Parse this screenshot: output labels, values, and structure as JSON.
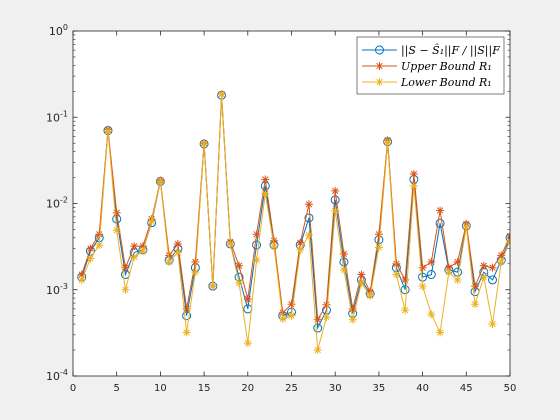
{
  "chart_data": {
    "type": "line",
    "yscale": "log",
    "xlim": [
      0,
      50
    ],
    "ylim": [
      0.0001,
      1
    ],
    "grid": false,
    "legend_placement": "top-right",
    "x_ticks": [
      "0",
      "5",
      "10",
      "15",
      "20",
      "25",
      "30",
      "35",
      "40",
      "45",
      "50"
    ],
    "y_ticks": [
      {
        "base": "10",
        "exp": "0"
      },
      {
        "base": "10",
        "exp": "-1"
      },
      {
        "base": "10",
        "exp": "-2"
      },
      {
        "base": "10",
        "exp": "-3"
      },
      {
        "base": "10",
        "exp": "-4"
      }
    ],
    "x": [
      1,
      2,
      3,
      4,
      5,
      6,
      7,
      8,
      9,
      10,
      11,
      12,
      13,
      14,
      15,
      16,
      17,
      18,
      19,
      20,
      21,
      22,
      23,
      24,
      25,
      26,
      27,
      28,
      29,
      30,
      31,
      32,
      33,
      34,
      35,
      36,
      37,
      38,
      39,
      40,
      41,
      42,
      43,
      44,
      45,
      46,
      47,
      48,
      49,
      50
    ],
    "series": [
      {
        "name": "||S − Ŝ₁||F / ||S||F",
        "color": "#0072BD",
        "marker": "circle",
        "values": [
          0.0014,
          0.0028,
          0.004,
          0.07,
          0.0066,
          0.0015,
          0.0027,
          0.0029,
          0.006,
          0.018,
          0.0022,
          0.003,
          0.0005,
          0.0018,
          0.049,
          0.0011,
          0.18,
          0.0034,
          0.0014,
          0.0006,
          0.0033,
          0.016,
          0.0033,
          0.0005,
          0.00055,
          0.0033,
          0.0068,
          0.00036,
          0.00058,
          0.011,
          0.0021,
          0.00053,
          0.0013,
          0.0009,
          0.0038,
          0.052,
          0.0018,
          0.001,
          0.019,
          0.0014,
          0.0015,
          0.0059,
          0.0017,
          0.0016,
          0.0055,
          0.00095,
          0.0016,
          0.0013,
          0.0022,
          0.004
        ]
      },
      {
        "name": "Upper Bound R₁",
        "color": "#D95319",
        "marker": "asterisk",
        "values": [
          0.0015,
          0.003,
          0.0044,
          0.072,
          0.0078,
          0.0018,
          0.0032,
          0.0032,
          0.0066,
          0.0185,
          0.0025,
          0.0034,
          0.0006,
          0.0021,
          0.05,
          0.0011,
          0.185,
          0.0036,
          0.0019,
          0.00078,
          0.0044,
          0.019,
          0.0037,
          0.00054,
          0.00068,
          0.0035,
          0.0098,
          0.00045,
          0.00067,
          0.014,
          0.0026,
          0.0006,
          0.0015,
          0.00095,
          0.0044,
          0.054,
          0.002,
          0.0013,
          0.022,
          0.0018,
          0.0021,
          0.0083,
          0.0018,
          0.0021,
          0.0058,
          0.0011,
          0.0019,
          0.0018,
          0.0025,
          0.0042
        ]
      },
      {
        "name": "Lower Bound R₁",
        "color": "#EDB120",
        "marker": "asterisk",
        "values": [
          0.0013,
          0.0023,
          0.0033,
          0.069,
          0.0049,
          0.001,
          0.0024,
          0.0028,
          0.0062,
          0.018,
          0.0021,
          0.0027,
          0.00032,
          0.0016,
          0.049,
          0.0011,
          0.185,
          0.0034,
          0.0012,
          0.00024,
          0.0022,
          0.013,
          0.0032,
          0.00046,
          0.0005,
          0.0029,
          0.0043,
          0.0002,
          0.00048,
          0.0082,
          0.0017,
          0.00045,
          0.0012,
          0.00085,
          0.0031,
          0.051,
          0.0015,
          0.00058,
          0.016,
          0.0011,
          0.00052,
          0.00032,
          0.0016,
          0.0013,
          0.0054,
          0.00068,
          0.0014,
          0.0004,
          0.0021,
          0.0037
        ]
      }
    ]
  }
}
